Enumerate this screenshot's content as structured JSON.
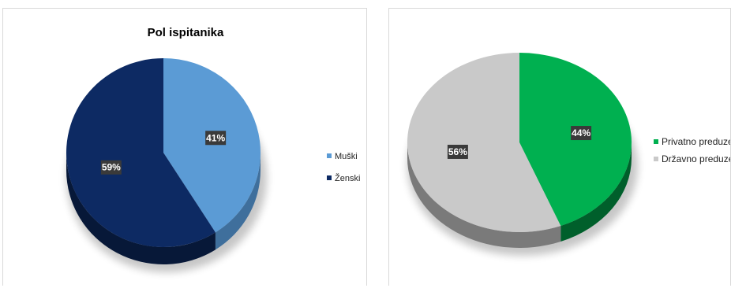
{
  "chart_data": [
    {
      "type": "pie",
      "title": "Pol ispitanika",
      "slices": [
        {
          "label": "Muški",
          "value": 41,
          "display": "41%",
          "color": "#5b9bd5",
          "side_color": "#3f6f9c"
        },
        {
          "label": "Ženski",
          "value": 59,
          "display": "59%",
          "color": "#0d2a63",
          "side_color": "#071838"
        }
      ],
      "legend_position": "right",
      "style": "3d"
    },
    {
      "type": "pie",
      "title": "",
      "slices": [
        {
          "label": "Privatno preduzeće",
          "value": 44,
          "display": "44%",
          "color": "#00b050",
          "side_color": "#005f2b"
        },
        {
          "label": "Državno preduzeće",
          "value": 56,
          "display": "56%",
          "color": "#c9c9c9",
          "side_color": "#7a7a7a"
        }
      ],
      "legend_position": "right",
      "style": "3d"
    }
  ]
}
